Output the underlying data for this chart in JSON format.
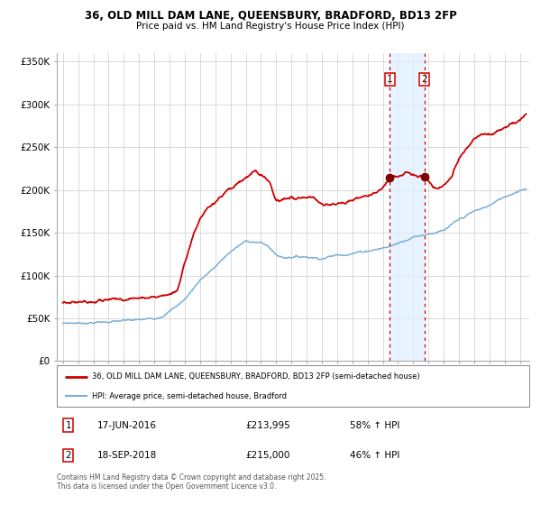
{
  "title": "36, OLD MILL DAM LANE, QUEENSBURY, BRADFORD, BD13 2FP",
  "subtitle": "Price paid vs. HM Land Registry's House Price Index (HPI)",
  "ylim": [
    0,
    360000
  ],
  "yticks": [
    0,
    50000,
    100000,
    150000,
    200000,
    250000,
    300000,
    350000
  ],
  "ytick_labels": [
    "£0",
    "£50K",
    "£100K",
    "£150K",
    "£200K",
    "£250K",
    "£300K",
    "£350K"
  ],
  "hpi_color": "#7bafd4",
  "price_color": "#cc0000",
  "sale1_x": 2016.46,
  "sale2_x": 2018.72,
  "sale1_price": 213995,
  "sale2_price": 215000,
  "legend_line1": "36, OLD MILL DAM LANE, QUEENSBURY, BRADFORD, BD13 2FP (semi-detached house)",
  "legend_line2": "HPI: Average price, semi-detached house, Bradford",
  "footer_line1": "Contains HM Land Registry data © Crown copyright and database right 2025.",
  "footer_line2": "This data is licensed under the Open Government Licence v3.0.",
  "table_row1": [
    "1",
    "17-JUN-2016",
    "£213,995",
    "58% ↑ HPI"
  ],
  "table_row2": [
    "2",
    "18-SEP-2018",
    "£215,000",
    "46% ↑ HPI"
  ],
  "background_color": "#ffffff",
  "grid_color": "#cccccc",
  "span_color": "#ddeeff",
  "dot_color": "#800000",
  "vline_color": "#cc0000",
  "box_edge_color": "#cc0000"
}
